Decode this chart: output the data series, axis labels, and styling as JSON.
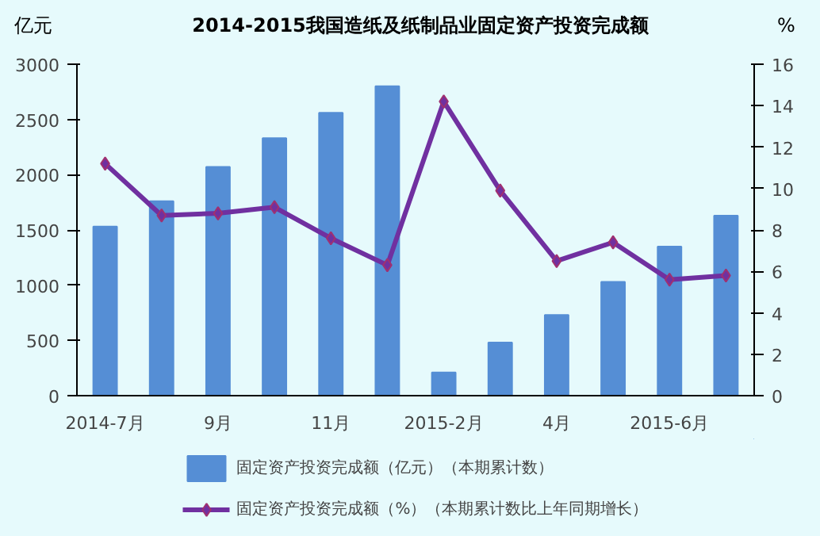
{
  "chart_data": {
    "type": "bar",
    "title": "2014-2015我国造纸及纸制品业固定资产投资完成额",
    "ylabel": "亿元",
    "y2label": "%",
    "categories": [
      "2014-7月",
      null,
      "9月",
      null,
      "11月",
      null,
      "2015-2月",
      null,
      "4月",
      null,
      "2015-6月",
      null
    ],
    "series": [
      {
        "name": "固定资产投资完成额（亿元）（本期累计数）",
        "color": "#558ed5",
        "values": [
          1530,
          1760,
          2070,
          2330,
          2560,
          2800,
          210,
          480,
          730,
          1030,
          1350,
          1630
        ]
      },
      {
        "name": "固定资产投资完成额（%）（本期累计数比上年同期增长）",
        "type": "line",
        "axis": "y2",
        "color": "#7030a0",
        "marker": "diamond",
        "values": [
          11.2,
          8.7,
          8.8,
          9.1,
          7.6,
          6.3,
          14.2,
          9.9,
          6.5,
          7.4,
          5.6,
          5.8
        ]
      }
    ],
    "ylim": [
      0,
      3000
    ],
    "yticks": [
      0,
      500,
      1000,
      1500,
      2000,
      2500,
      3000
    ],
    "y2lim": [
      0,
      16
    ],
    "y2ticks": [
      0,
      2,
      4,
      6,
      8,
      10,
      12,
      14,
      16
    ],
    "grid": false,
    "legend": "bottom"
  }
}
